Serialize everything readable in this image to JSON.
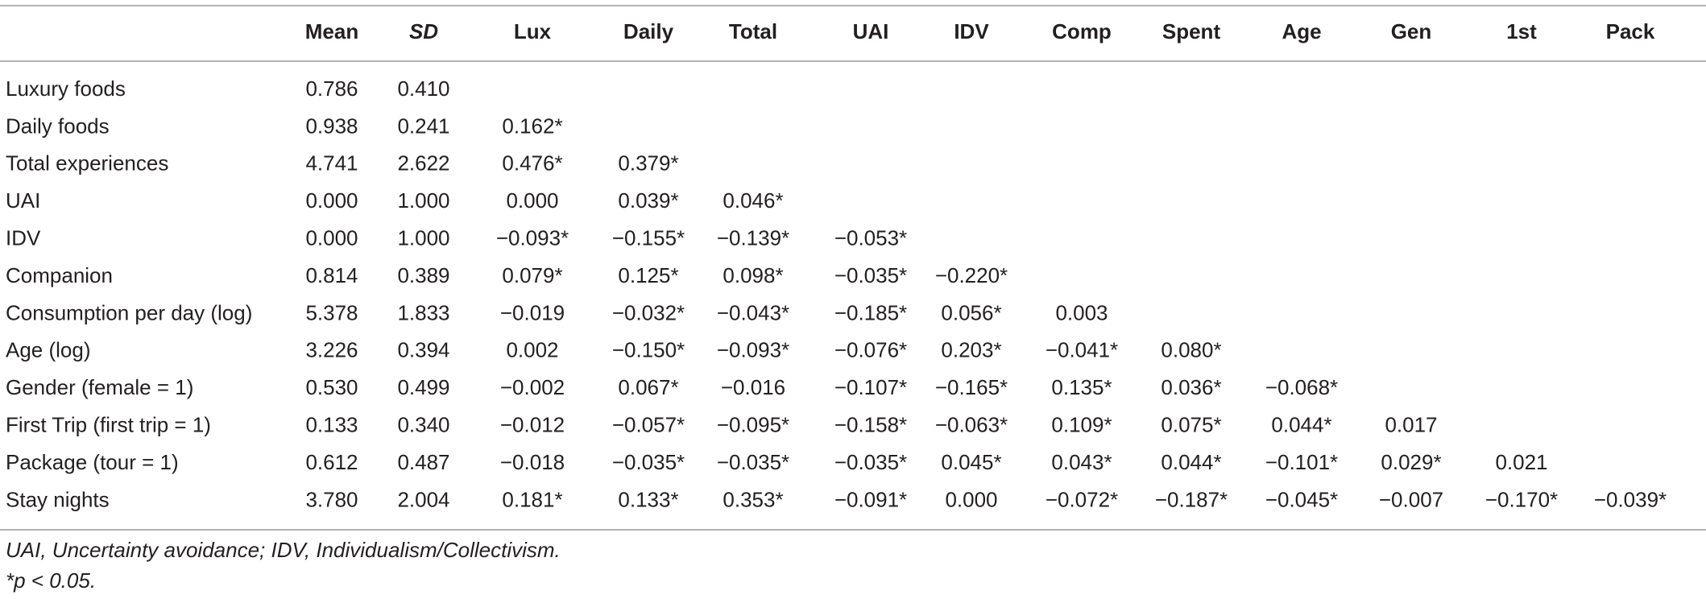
{
  "table": {
    "header": [
      "Mean",
      "SD",
      "Lux",
      "Daily",
      "Total",
      "UAI",
      "IDV",
      "Comp",
      "Spent",
      "Age",
      "Gen",
      "1st",
      "Pack"
    ],
    "rows": [
      {
        "label": "Luxury foods",
        "cells": [
          "0.786",
          "0.410"
        ]
      },
      {
        "label": "Daily foods",
        "cells": [
          "0.938",
          "0.241",
          "0.162*"
        ]
      },
      {
        "label": "Total experiences",
        "cells": [
          "4.741",
          "2.622",
          "0.476*",
          "0.379*"
        ]
      },
      {
        "label": "UAI",
        "cells": [
          "0.000",
          "1.000",
          "0.000",
          "0.039*",
          "0.046*"
        ]
      },
      {
        "label": "IDV",
        "cells": [
          "0.000",
          "1.000",
          "−0.093*",
          "−0.155*",
          "−0.139*",
          "−0.053*"
        ]
      },
      {
        "label": "Companion",
        "cells": [
          "0.814",
          "0.389",
          "0.079*",
          "0.125*",
          "0.098*",
          "−0.035*",
          "−0.220*"
        ]
      },
      {
        "label": "Consumption per day (log)",
        "cells": [
          "5.378",
          "1.833",
          "−0.019",
          "−0.032*",
          "−0.043*",
          "−0.185*",
          "0.056*",
          "0.003"
        ]
      },
      {
        "label": "Age (log)",
        "cells": [
          "3.226",
          "0.394",
          "0.002",
          "−0.150*",
          "−0.093*",
          "−0.076*",
          "0.203*",
          "−0.041*",
          "0.080*"
        ]
      },
      {
        "label": "Gender (female = 1)",
        "cells": [
          "0.530",
          "0.499",
          "−0.002",
          "0.067*",
          "−0.016",
          "−0.107*",
          "−0.165*",
          "0.135*",
          "0.036*",
          "−0.068*"
        ]
      },
      {
        "label": "First Trip (first trip = 1)",
        "cells": [
          "0.133",
          "0.340",
          "−0.012",
          "−0.057*",
          "−0.095*",
          "−0.158*",
          "−0.063*",
          "0.109*",
          "0.075*",
          "0.044*",
          "0.017"
        ]
      },
      {
        "label": "Package (tour = 1)",
        "cells": [
          "0.612",
          "0.487",
          "−0.018",
          "−0.035*",
          "−0.035*",
          "−0.035*",
          "0.045*",
          "0.043*",
          "0.044*",
          "−0.101*",
          "0.029*",
          "0.021"
        ]
      },
      {
        "label": "Stay nights",
        "cells": [
          "3.780",
          "2.004",
          "0.181*",
          "0.133*",
          "0.353*",
          "−0.091*",
          "0.000",
          "−0.072*",
          "−0.187*",
          "−0.045*",
          "−0.007",
          "−0.170*",
          "−0.039*"
        ]
      }
    ],
    "footnotes": [
      "UAI, Uncertainty avoidance; IDV, Individualism/Collectivism.",
      "*p < 0.05."
    ]
  }
}
